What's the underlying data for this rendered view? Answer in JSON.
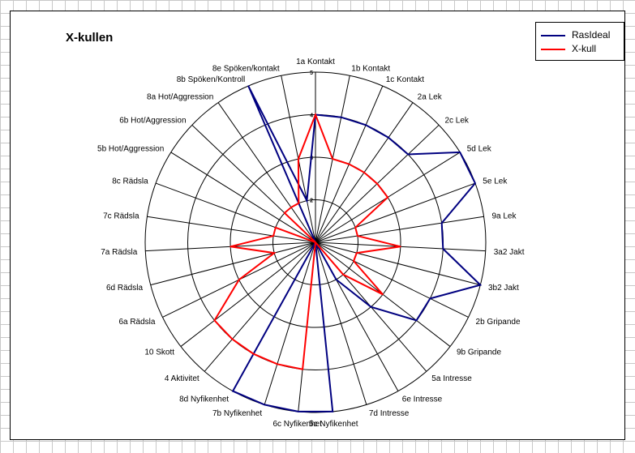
{
  "chart_data": {
    "type": "radar",
    "title": "X-kullen",
    "categories": [
      "1a Kontakt",
      "1b Kontakt",
      "1c Kontakt",
      "2a Lek",
      "2c Lek",
      "5d Lek",
      "5e Lek",
      "9a Lek",
      "3a2 Jakt",
      "3b2 Jakt",
      "2b Gripande",
      "9b Gripande",
      "5a Intresse",
      "6e Intresse",
      "7d Intresse",
      "5c Nyfikenhet",
      "6c Nyfikenhet",
      "7b Nyfikenhet",
      "8d Nyfikenhet",
      "4 Aktivitet",
      "10 Skott",
      "6a Rädsla",
      "6d Rädsla",
      "7a Rädsla",
      "7c Rädsla",
      "8c Rädsla",
      "5b Hot/Aggression",
      "6b Hot/Aggression",
      "8a Hot/Aggression",
      "8b Spöken/Kontroll",
      "8e Spöken/kontakt"
    ],
    "ticks": [
      "1",
      "2",
      "3",
      "4",
      "5"
    ],
    "rlim": [
      1,
      5
    ],
    "series": [
      {
        "name": "RasIdeal",
        "color": "#000080",
        "values": [
          4,
          4,
          4,
          4,
          4,
          5,
          5,
          4,
          4,
          5,
          4,
          4,
          3,
          2,
          1,
          5,
          5,
          5,
          5,
          1,
          1,
          1,
          1,
          1,
          1,
          1,
          1,
          1,
          1,
          5,
          2
        ]
      },
      {
        "name": "X-kull",
        "color": "#ff0000",
        "values": [
          4,
          3,
          3,
          3,
          3,
          3,
          2,
          2,
          3,
          2,
          2,
          3,
          2,
          1,
          1,
          1,
          4,
          4,
          4,
          4,
          4,
          3,
          2,
          3,
          2,
          2,
          1,
          2,
          2,
          2,
          3
        ]
      }
    ],
    "legend": "top-right"
  }
}
